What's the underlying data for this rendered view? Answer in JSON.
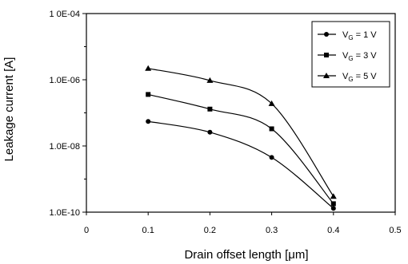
{
  "chart_data": {
    "type": "line",
    "xlabel": "Drain offset length [μm]",
    "ylabel": "Leakage current [A]",
    "x_ticks": [
      "0",
      "0.1",
      "0.2",
      "0.3",
      "0.4",
      "0.5"
    ],
    "x_tick_values": [
      0,
      0.1,
      0.2,
      0.3,
      0.4,
      0.5
    ],
    "y_ticks": [
      "1.0E-10",
      "1.0E-08",
      "1.0E-06",
      "1 0E-04"
    ],
    "y_tick_values": [
      1e-10,
      1e-08,
      1e-06,
      0.0001
    ],
    "xlim": [
      0,
      0.5
    ],
    "ylim": [
      1e-10,
      0.0001
    ],
    "yscale": "log",
    "grid": false,
    "legend_position": "top-right",
    "series": [
      {
        "name": "VG = 1 V",
        "marker": "circle",
        "x": [
          0.1,
          0.2,
          0.3,
          0.4
        ],
        "y": [
          5.5e-08,
          2.6e-08,
          4.5e-09,
          1.3e-10
        ]
      },
      {
        "name": "VG = 3 V",
        "marker": "square",
        "x": [
          0.1,
          0.2,
          0.3,
          0.4
        ],
        "y": [
          3.6e-07,
          1.3e-07,
          3.3e-08,
          1.8e-10
        ]
      },
      {
        "name": "VG = 5 V",
        "marker": "triangle",
        "x": [
          0.1,
          0.2,
          0.3,
          0.4
        ],
        "y": [
          2.2e-06,
          9.5e-07,
          1.9e-07,
          3e-10
        ]
      }
    ]
  }
}
